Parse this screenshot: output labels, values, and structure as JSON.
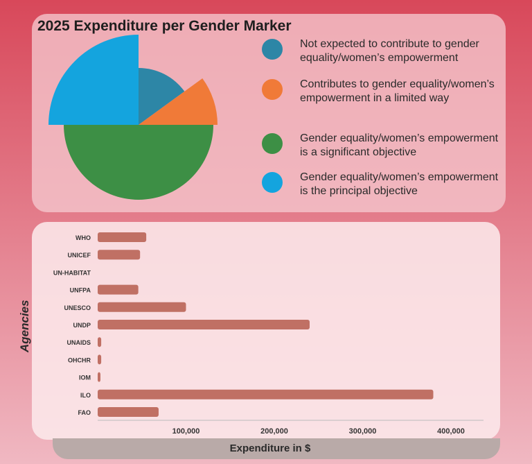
{
  "colors": {
    "bg_top": "#d8485a",
    "bg_bottom": "#f0b8c2",
    "bar": "#c07064"
  },
  "pie": {
    "title": "2025 Expenditure per Gender Marker",
    "slices": [
      {
        "label": "Not expected to contribute to gender equality/women’s empowerment",
        "value": 15,
        "color": "#2d86a6"
      },
      {
        "label": "Contributes to gender equality/women’s empowerment in a limited way",
        "value": 10,
        "color": "#f07a38"
      },
      {
        "label": "Gender equality/women’s empowerment is a significant objective",
        "value": 50,
        "color": "#3d8f45"
      },
      {
        "label": "Gender equality/women’s empowerment is the principal objective",
        "value": 25,
        "color": "#14a4de"
      }
    ]
  },
  "chart_data": {
    "type": "bar",
    "orientation": "horizontal",
    "categories": [
      "WHO",
      "UNICEF",
      "UN-HABITAT",
      "UNFPA",
      "UNESCO",
      "UNDP",
      "UNAIDS",
      "OHCHR",
      "IOM",
      "ILO",
      "FAO"
    ],
    "values": [
      55000,
      48000,
      0,
      46000,
      100000,
      240000,
      4000,
      4000,
      2000,
      380000,
      69000
    ],
    "xlabel": "Expenditure in $",
    "ylabel": "Agencies",
    "xticks": [
      100000,
      200000,
      300000,
      400000
    ],
    "xtick_labels": [
      "100,000",
      "200,000",
      "300,000",
      "400,000"
    ],
    "grid": false
  }
}
